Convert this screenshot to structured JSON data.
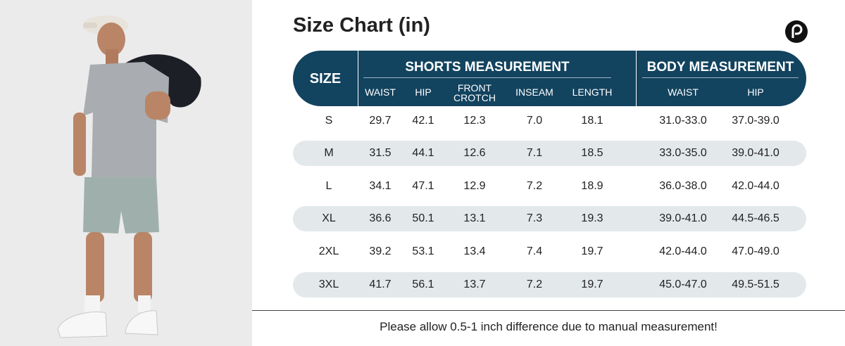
{
  "header": {
    "title": "Size Chart (in)"
  },
  "table": {
    "size_header": "SIZE",
    "groups": [
      "SHORTS MEASUREMENT",
      "BODY MEASUREMENT"
    ],
    "columns": [
      "WAIST",
      "HIP",
      "FRONT CROTCH",
      "INSEAM",
      "LENGTH",
      "WAIST",
      "HIP"
    ],
    "rows": [
      [
        "S",
        "29.7",
        "42.1",
        "12.3",
        "7.0",
        "18.1",
        "31.0-33.0",
        "37.0-39.0"
      ],
      [
        "M",
        "31.5",
        "44.1",
        "12.6",
        "7.1",
        "18.5",
        "33.0-35.0",
        "39.0-41.0"
      ],
      [
        "L",
        "34.1",
        "47.1",
        "12.9",
        "7.2",
        "18.9",
        "36.0-38.0",
        "42.0-44.0"
      ],
      [
        "XL",
        "36.6",
        "50.1",
        "13.1",
        "7.3",
        "19.3",
        "39.0-41.0",
        "44.5-46.5"
      ],
      [
        "2XL",
        "39.2",
        "53.1",
        "13.4",
        "7.4",
        "19.7",
        "42.0-44.0",
        "47.0-49.0"
      ],
      [
        "3XL",
        "41.7",
        "56.1",
        "13.7",
        "7.2",
        "19.7",
        "45.0-47.0",
        "49.5-51.5"
      ]
    ]
  },
  "footer": {
    "note": "Please allow 0.5-1 inch difference due to manual measurement!"
  }
}
